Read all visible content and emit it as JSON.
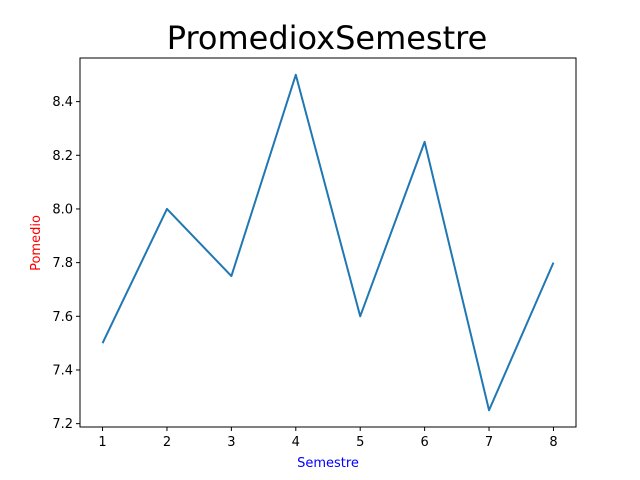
{
  "chart_data": {
    "type": "line",
    "title": "PromedioxSemestre",
    "xlabel": "Semestre",
    "ylabel": "Pomedio",
    "x": [
      1,
      2,
      3,
      4,
      5,
      6,
      7,
      8
    ],
    "series": [
      {
        "values": [
          7.5,
          8.0,
          7.75,
          8.5,
          7.6,
          8.25,
          7.25,
          7.8
        ],
        "color": "#1f77b4"
      }
    ],
    "xticks": [
      "1",
      "2",
      "3",
      "4",
      "5",
      "6",
      "7",
      "8"
    ],
    "yticks": [
      "7.2",
      "7.4",
      "7.6",
      "7.8",
      "8.0",
      "8.2",
      "8.4"
    ],
    "xlim": [
      0.65,
      8.35
    ],
    "ylim": [
      7.1875,
      8.5625
    ],
    "grid": false,
    "colors": {
      "xlabel": "#0000ff",
      "ylabel": "#ff0000",
      "axes": "#000000"
    }
  }
}
